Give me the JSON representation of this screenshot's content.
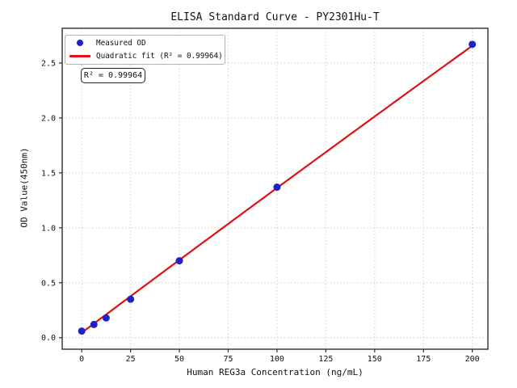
{
  "figure": {
    "background": "#ffffff"
  },
  "chart_data": {
    "type": "scatter",
    "title": "ELISA Standard Curve - PY2301Hu-T",
    "xlabel": "Human REG3a Concentration (ng/mL)",
    "ylabel": "OD Value(450nm)",
    "xlim": [
      -10,
      208
    ],
    "ylim": [
      -0.105,
      2.816
    ],
    "grid": true,
    "legend_position": "upper-left",
    "xticks": {
      "values": [
        0,
        25,
        50,
        75,
        100,
        125,
        150,
        175,
        200
      ],
      "labels": [
        "0",
        "25",
        "50",
        "75",
        "100",
        "125",
        "150",
        "175",
        "200"
      ]
    },
    "yticks": {
      "values": [
        0.0,
        0.5,
        1.0,
        1.5,
        2.0,
        2.5
      ],
      "labels": [
        "0.0",
        "0.5",
        "1.0",
        "1.5",
        "2.0",
        "2.5"
      ]
    },
    "series": [
      {
        "name": "Measured OD",
        "kind": "scatter",
        "color": "#2121cc",
        "x": [
          0,
          6.25,
          12.5,
          25,
          50,
          100,
          200
        ],
        "y": [
          0.06,
          0.12,
          0.18,
          0.35,
          0.7,
          1.37,
          2.67
        ]
      },
      {
        "name": "Quadratic fit (R² = 0.99964)",
        "kind": "line",
        "color": "#e01111",
        "fit_coefficients": {
          "a": 0.045,
          "b": 0.0133,
          "c": -1.2e-06
        },
        "x_range": [
          0,
          200
        ]
      }
    ],
    "annotation": "R² = 0.99964",
    "r_squared": 0.99964
  }
}
